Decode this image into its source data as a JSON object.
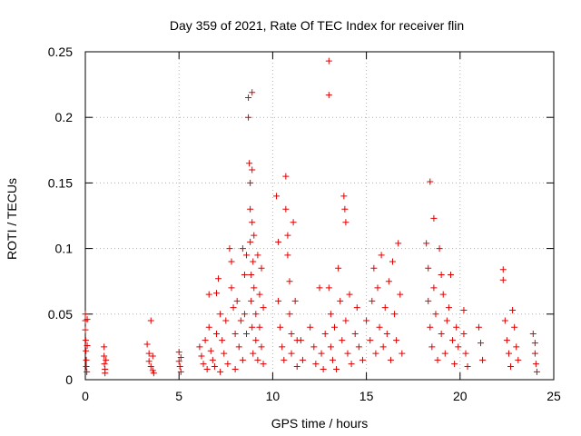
{
  "chart_data": {
    "type": "scatter",
    "title": "Day 359 of 2021, Rate Of TEC Index for receiver flin",
    "xlabel": "GPS time / hours",
    "ylabel": "ROTI / TECUs",
    "xlim": [
      0,
      25
    ],
    "ylim": [
      0,
      0.25
    ],
    "xticks": [
      "0",
      "5",
      "10",
      "15",
      "20",
      "25"
    ],
    "yticks": [
      "0",
      "0.05",
      "0.1",
      "0.15",
      "0.2",
      "0.25"
    ],
    "grid": true,
    "marker": "+",
    "color": "#e00000",
    "series": [
      {
        "name": "",
        "points": [
          [
            0.0,
            0.05
          ],
          [
            0.0,
            0.045
          ],
          [
            0.0,
            0.038
          ],
          [
            0.02,
            0.03
          ],
          [
            0.03,
            0.022
          ],
          [
            0.05,
            0.015
          ],
          [
            0.05,
            0.01
          ],
          [
            0.08,
            0.006
          ],
          [
            0.1,
            0.046
          ],
          [
            0.1,
            0.026
          ],
          [
            1.0,
            0.025
          ],
          [
            1.0,
            0.018
          ],
          [
            1.02,
            0.012
          ],
          [
            1.05,
            0.008
          ],
          [
            1.05,
            0.005
          ],
          [
            1.1,
            0.015
          ],
          [
            3.3,
            0.027
          ],
          [
            3.4,
            0.02
          ],
          [
            3.4,
            0.014
          ],
          [
            3.5,
            0.045
          ],
          [
            3.5,
            0.01
          ],
          [
            3.6,
            0.007
          ],
          [
            3.6,
            0.018
          ],
          [
            3.65,
            0.005
          ],
          [
            5.0,
            0.021
          ],
          [
            5.0,
            0.014
          ],
          [
            5.05,
            0.01
          ],
          [
            5.1,
            0.006
          ],
          [
            5.1,
            0.017
          ],
          [
            6.1,
            0.025
          ],
          [
            6.2,
            0.018
          ],
          [
            6.3,
            0.012
          ],
          [
            6.4,
            0.03
          ],
          [
            6.5,
            0.008
          ],
          [
            6.6,
            0.065
          ],
          [
            6.6,
            0.04
          ],
          [
            6.7,
            0.022
          ],
          [
            6.8,
            0.015
          ],
          [
            6.9,
            0.01
          ],
          [
            7.0,
            0.066
          ],
          [
            7.0,
            0.035
          ],
          [
            7.1,
            0.077
          ],
          [
            7.2,
            0.05
          ],
          [
            7.2,
            0.006
          ],
          [
            7.3,
            0.03
          ],
          [
            7.4,
            0.02
          ],
          [
            7.5,
            0.045
          ],
          [
            7.6,
            0.012
          ],
          [
            7.7,
            0.1
          ],
          [
            7.8,
            0.09
          ],
          [
            7.8,
            0.07
          ],
          [
            7.9,
            0.055
          ],
          [
            8.0,
            0.035
          ],
          [
            8.0,
            0.008
          ],
          [
            8.1,
            0.06
          ],
          [
            8.2,
            0.025
          ],
          [
            8.3,
            0.045
          ],
          [
            8.4,
            0.1
          ],
          [
            8.4,
            0.015
          ],
          [
            8.5,
            0.08
          ],
          [
            8.5,
            0.05
          ],
          [
            8.6,
            0.095
          ],
          [
            8.6,
            0.035
          ],
          [
            8.7,
            0.215
          ],
          [
            8.7,
            0.2
          ],
          [
            8.75,
            0.165
          ],
          [
            8.8,
            0.15
          ],
          [
            8.8,
            0.13
          ],
          [
            8.8,
            0.105
          ],
          [
            8.85,
            0.08
          ],
          [
            8.85,
            0.06
          ],
          [
            8.9,
            0.219
          ],
          [
            8.9,
            0.16
          ],
          [
            8.9,
            0.12
          ],
          [
            8.9,
            0.04
          ],
          [
            8.95,
            0.09
          ],
          [
            8.95,
            0.02
          ],
          [
            9.0,
            0.11
          ],
          [
            9.0,
            0.07
          ],
          [
            9.1,
            0.05
          ],
          [
            9.1,
            0.03
          ],
          [
            9.2,
            0.095
          ],
          [
            9.2,
            0.015
          ],
          [
            9.3,
            0.065
          ],
          [
            9.3,
            0.04
          ],
          [
            9.4,
            0.085
          ],
          [
            9.4,
            0.025
          ],
          [
            9.5,
            0.055
          ],
          [
            9.5,
            0.012
          ],
          [
            10.2,
            0.14
          ],
          [
            10.3,
            0.105
          ],
          [
            10.3,
            0.06
          ],
          [
            10.4,
            0.04
          ],
          [
            10.5,
            0.025
          ],
          [
            10.6,
            0.015
          ],
          [
            10.7,
            0.155
          ],
          [
            10.7,
            0.13
          ],
          [
            10.8,
            0.11
          ],
          [
            10.8,
            0.095
          ],
          [
            10.9,
            0.075
          ],
          [
            10.9,
            0.05
          ],
          [
            11.0,
            0.035
          ],
          [
            11.0,
            0.02
          ],
          [
            11.1,
            0.12
          ],
          [
            11.2,
            0.06
          ],
          [
            11.3,
            0.03
          ],
          [
            11.3,
            0.01
          ],
          [
            11.5,
            0.03
          ],
          [
            11.6,
            0.015
          ],
          [
            12.0,
            0.04
          ],
          [
            12.2,
            0.025
          ],
          [
            12.3,
            0.012
          ],
          [
            12.5,
            0.07
          ],
          [
            12.6,
            0.02
          ],
          [
            12.7,
            0.008
          ],
          [
            12.8,
            0.035
          ],
          [
            13.0,
            0.243
          ],
          [
            13.0,
            0.217
          ],
          [
            13.0,
            0.07
          ],
          [
            13.1,
            0.05
          ],
          [
            13.1,
            0.025
          ],
          [
            13.2,
            0.015
          ],
          [
            13.3,
            0.04
          ],
          [
            13.4,
            0.008
          ],
          [
            13.5,
            0.085
          ],
          [
            13.6,
            0.06
          ],
          [
            13.7,
            0.03
          ],
          [
            13.8,
            0.14
          ],
          [
            13.85,
            0.13
          ],
          [
            13.9,
            0.12
          ],
          [
            13.9,
            0.045
          ],
          [
            14.0,
            0.02
          ],
          [
            14.1,
            0.065
          ],
          [
            14.2,
            0.012
          ],
          [
            14.4,
            0.035
          ],
          [
            14.5,
            0.055
          ],
          [
            14.6,
            0.025
          ],
          [
            14.8,
            0.015
          ],
          [
            15.0,
            0.045
          ],
          [
            15.2,
            0.03
          ],
          [
            15.3,
            0.06
          ],
          [
            15.4,
            0.085
          ],
          [
            15.5,
            0.02
          ],
          [
            15.6,
            0.07
          ],
          [
            15.7,
            0.04
          ],
          [
            15.8,
            0.095
          ],
          [
            15.9,
            0.025
          ],
          [
            16.0,
            0.055
          ],
          [
            16.1,
            0.035
          ],
          [
            16.2,
            0.075
          ],
          [
            16.3,
            0.015
          ],
          [
            16.4,
            0.09
          ],
          [
            16.5,
            0.05
          ],
          [
            16.6,
            0.03
          ],
          [
            16.7,
            0.104
          ],
          [
            16.8,
            0.065
          ],
          [
            16.9,
            0.02
          ],
          [
            18.2,
            0.104
          ],
          [
            18.3,
            0.085
          ],
          [
            18.3,
            0.06
          ],
          [
            18.4,
            0.151
          ],
          [
            18.4,
            0.04
          ],
          [
            18.5,
            0.025
          ],
          [
            18.6,
            0.123
          ],
          [
            18.6,
            0.07
          ],
          [
            18.7,
            0.05
          ],
          [
            18.8,
            0.015
          ],
          [
            18.9,
            0.1
          ],
          [
            19.0,
            0.08
          ],
          [
            19.0,
            0.035
          ],
          [
            19.1,
            0.065
          ],
          [
            19.2,
            0.02
          ],
          [
            19.3,
            0.045
          ],
          [
            19.4,
            0.055
          ],
          [
            19.5,
            0.08
          ],
          [
            19.6,
            0.03
          ],
          [
            19.7,
            0.012
          ],
          [
            19.8,
            0.04
          ],
          [
            19.9,
            0.025
          ],
          [
            20.2,
            0.053
          ],
          [
            20.2,
            0.035
          ],
          [
            20.3,
            0.02
          ],
          [
            20.4,
            0.01
          ],
          [
            21.0,
            0.04
          ],
          [
            21.1,
            0.028
          ],
          [
            21.2,
            0.015
          ],
          [
            22.3,
            0.084
          ],
          [
            22.3,
            0.076
          ],
          [
            22.4,
            0.045
          ],
          [
            22.5,
            0.03
          ],
          [
            22.6,
            0.02
          ],
          [
            22.7,
            0.01
          ],
          [
            22.8,
            0.053
          ],
          [
            22.9,
            0.04
          ],
          [
            23.0,
            0.025
          ],
          [
            23.1,
            0.015
          ],
          [
            23.9,
            0.035
          ],
          [
            24.0,
            0.028
          ],
          [
            24.0,
            0.02
          ],
          [
            24.05,
            0.012
          ],
          [
            24.1,
            0.006
          ]
        ]
      }
    ]
  }
}
